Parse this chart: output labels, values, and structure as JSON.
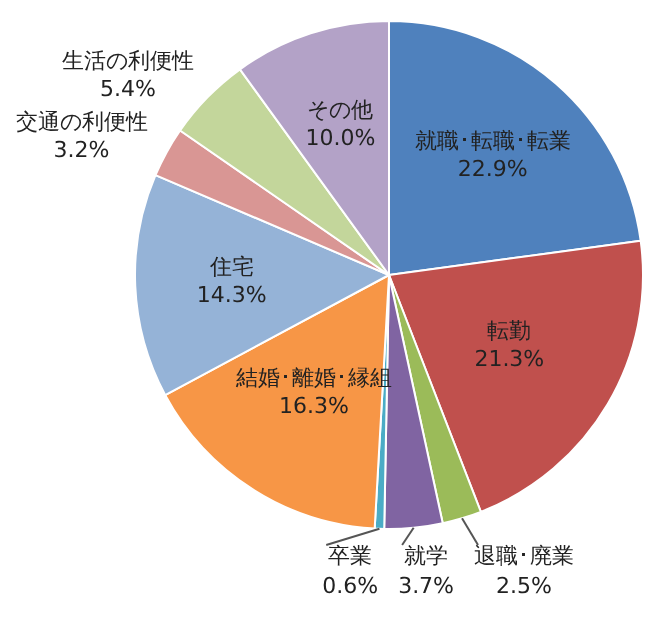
{
  "chart_data": {
    "type": "pie",
    "categories": [
      "就職･転職･転業",
      "転勤",
      "退職･廃業",
      "就学",
      "卒業",
      "結婚･離婚･縁組",
      "住宅",
      "交通の利便性",
      "生活の利便性",
      "その他"
    ],
    "values": [
      22.9,
      21.3,
      2.5,
      3.7,
      0.6,
      16.3,
      14.3,
      3.2,
      5.4,
      10.0
    ],
    "colors": [
      "#4f81bd",
      "#c0504d",
      "#9bbb59",
      "#8064a2",
      "#4bacc6",
      "#f79646",
      "#95b3d7",
      "#d99694",
      "#c3d69b",
      "#b3a2c7"
    ],
    "value_labels": [
      "22.9%",
      "21.3%",
      "2.5%",
      "3.7%",
      "0.6%",
      "16.3%",
      "14.3%",
      "3.2%",
      "5.4%",
      "10.0%"
    ],
    "legend": false
  }
}
